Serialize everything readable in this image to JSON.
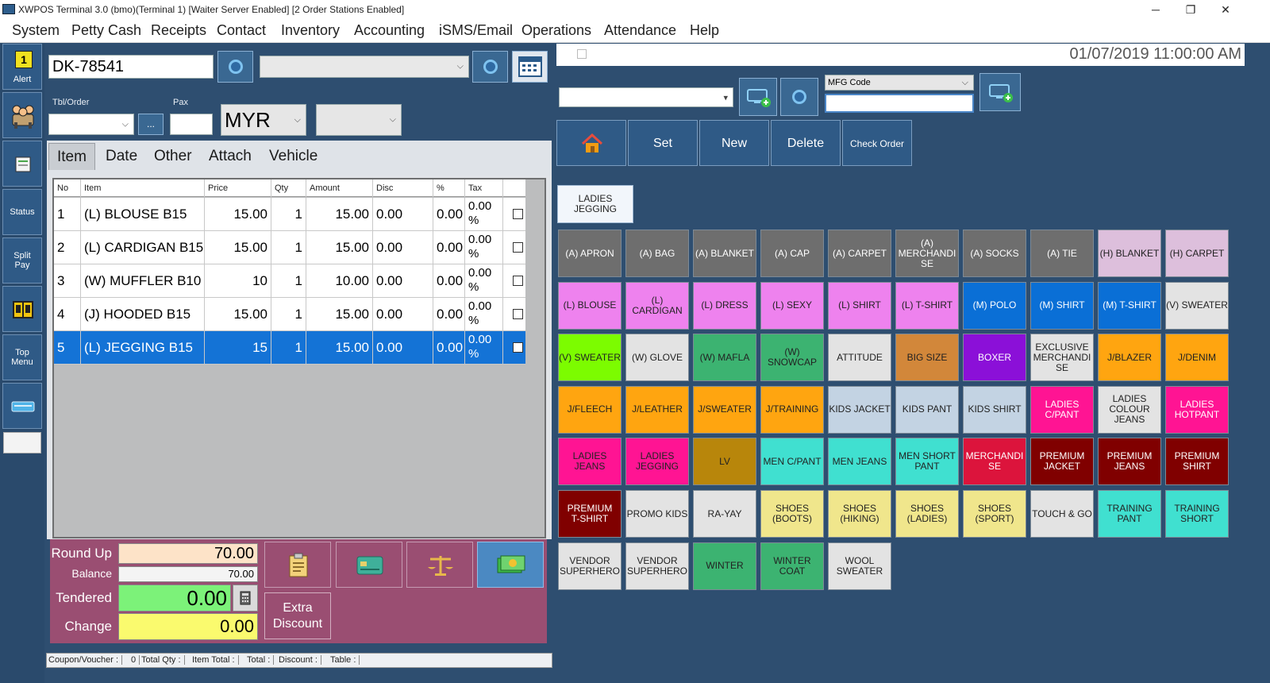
{
  "window": {
    "title": "XWPOS Terminal 3.0 (bmo)(Terminal 1) [Waiter Server Enabled] [2 Order Stations Enabled]",
    "minimize": "─",
    "maximize": "❐",
    "close": "✕"
  },
  "menu": [
    "System",
    "Petty Cash",
    "Receipts",
    "Contact",
    "Inventory",
    "Accounting",
    "iSMS/Email",
    "Operations",
    "Attendance",
    "Help"
  ],
  "rail": {
    "alert_count": "1",
    "alert": "Alert",
    "status": "Status",
    "split_pay": "Split\nPay",
    "top_menu": "Top\nMenu"
  },
  "order": {
    "doc_no": "DK-78541",
    "tbl_label": "Tbl/Order",
    "pax_label": "Pax",
    "currency": "MYR",
    "ellipsis": "..."
  },
  "tabs": [
    "Item",
    "Date",
    "Other",
    "Attach",
    "Vehicle"
  ],
  "grid": {
    "headers": [
      "No",
      "Item",
      "Price",
      "Qty",
      "Amount",
      "Disc",
      "%",
      "Tax"
    ],
    "rows": [
      {
        "no": "1",
        "item": "(L) BLOUSE B15",
        "price": "15.00",
        "qty": "1",
        "amount": "15.00",
        "disc": "0.00",
        "pct": "0.00",
        "tax1": "0.00",
        "tax2": "%",
        "selected": false
      },
      {
        "no": "2",
        "item": "(L) CARDIGAN B15",
        "price": "15.00",
        "qty": "1",
        "amount": "15.00",
        "disc": "0.00",
        "pct": "0.00",
        "tax1": "0.00",
        "tax2": "%",
        "selected": false
      },
      {
        "no": "3",
        "item": "(W) MUFFLER B10",
        "price": "10",
        "qty": "1",
        "amount": "10.00",
        "disc": "0.00",
        "pct": "0.00",
        "tax1": "0.00",
        "tax2": "%",
        "selected": false
      },
      {
        "no": "4",
        "item": "(J) HOODED B15",
        "price": "15.00",
        "qty": "1",
        "amount": "15.00",
        "disc": "0.00",
        "pct": "0.00",
        "tax1": "0.00",
        "tax2": "%",
        "selected": false
      },
      {
        "no": "5",
        "item": "(L) JEGGING B15",
        "price": "15",
        "qty": "1",
        "amount": "15.00",
        "disc": "0.00",
        "pct": "0.00",
        "tax1": "0.00",
        "tax2": "%",
        "selected": true
      }
    ]
  },
  "totals": {
    "round_up_label": "Round Up",
    "round_up": "70.00",
    "balance_label": "Balance",
    "balance": "70.00",
    "tendered_label": "Tendered",
    "tendered": "0.00",
    "change_label": "Change",
    "change": "0.00",
    "extra_discount": "Extra\nDiscount"
  },
  "statusbar": {
    "coupon": "Coupon/Voucher :",
    "coupon_val": "0",
    "total_qty": "Total Qty :",
    "item_total": "Item Total :",
    "total": "Total :",
    "discount": "Discount :",
    "table": "Table :"
  },
  "right": {
    "clock": "01/07/2019 11:00:00 AM",
    "mfg_label": "MFG Code",
    "buttons": [
      "Set",
      "New",
      "Delete",
      "Check Order"
    ],
    "breadcrumb": "LADIES\nJEGGING"
  },
  "categories": [
    {
      "label": "(A) APRON",
      "bg": "#6e6e6e",
      "fg": "#ffffff"
    },
    {
      "label": "(A) BAG",
      "bg": "#6e6e6e",
      "fg": "#ffffff"
    },
    {
      "label": "(A) BLANKET",
      "bg": "#6e6e6e",
      "fg": "#ffffff"
    },
    {
      "label": "(A) CAP",
      "bg": "#6e6e6e",
      "fg": "#ffffff"
    },
    {
      "label": "(A) CARPET",
      "bg": "#6e6e6e",
      "fg": "#ffffff"
    },
    {
      "label": "(A)\nMERCHANDI\nSE",
      "bg": "#6e6e6e",
      "fg": "#ffffff"
    },
    {
      "label": "(A) SOCKS",
      "bg": "#6e6e6e",
      "fg": "#ffffff"
    },
    {
      "label": "(A) TIE",
      "bg": "#6e6e6e",
      "fg": "#ffffff"
    },
    {
      "label": "(H) BLANKET",
      "bg": "#ddbfdc",
      "fg": "#222222"
    },
    {
      "label": "(H) CARPET",
      "bg": "#ddbfdc",
      "fg": "#222222"
    },
    {
      "label": "(L) BLOUSE",
      "bg": "#ee82ee",
      "fg": "#222222"
    },
    {
      "label": "(L)\nCARDIGAN",
      "bg": "#ee82ee",
      "fg": "#222222"
    },
    {
      "label": "(L) DRESS",
      "bg": "#ee82ee",
      "fg": "#222222"
    },
    {
      "label": "(L) SEXY",
      "bg": "#ee82ee",
      "fg": "#222222"
    },
    {
      "label": "(L) SHIRT",
      "bg": "#ee82ee",
      "fg": "#222222"
    },
    {
      "label": "(L) T-SHIRT",
      "bg": "#ee82ee",
      "fg": "#222222"
    },
    {
      "label": "(M) POLO",
      "bg": "#0a6fd6",
      "fg": "#ffffff"
    },
    {
      "label": "(M) SHIRT",
      "bg": "#0a6fd6",
      "fg": "#ffffff"
    },
    {
      "label": "(M) T-SHIRT",
      "bg": "#0a6fd6",
      "fg": "#ffffff"
    },
    {
      "label": "(V) SWEATER",
      "bg": "#e3e3e3",
      "fg": "#222222"
    },
    {
      "label": "(V) SWEATER",
      "bg": "#7cfc00",
      "fg": "#222222"
    },
    {
      "label": "(W) GLOVE",
      "bg": "#e3e3e3",
      "fg": "#222222"
    },
    {
      "label": "(W) MAFLA",
      "bg": "#3cb371",
      "fg": "#222222"
    },
    {
      "label": "(W)\nSNOWCAP",
      "bg": "#3cb371",
      "fg": "#222222"
    },
    {
      "label": "ATTITUDE",
      "bg": "#e3e3e3",
      "fg": "#222222"
    },
    {
      "label": "BIG SIZE",
      "bg": "#d2873a",
      "fg": "#222222"
    },
    {
      "label": "BOXER",
      "bg": "#8b10d8",
      "fg": "#ffffff"
    },
    {
      "label": "EXCLUSIVE\nMERCHANDI\nSE",
      "bg": "#e3e3e3",
      "fg": "#222222"
    },
    {
      "label": "J/BLAZER",
      "bg": "#ffa510",
      "fg": "#222222"
    },
    {
      "label": "J/DENIM",
      "bg": "#ffa510",
      "fg": "#222222"
    },
    {
      "label": "J/FLEECH",
      "bg": "#ffa510",
      "fg": "#222222"
    },
    {
      "label": "J/LEATHER",
      "bg": "#ffa510",
      "fg": "#222222"
    },
    {
      "label": "J/SWEATER",
      "bg": "#ffa510",
      "fg": "#222222"
    },
    {
      "label": "J/TRAINING",
      "bg": "#ffa510",
      "fg": "#222222"
    },
    {
      "label": "KIDS JACKET",
      "bg": "#c3d3e3",
      "fg": "#222222"
    },
    {
      "label": "KIDS PANT",
      "bg": "#c3d3e3",
      "fg": "#222222"
    },
    {
      "label": "KIDS SHIRT",
      "bg": "#c3d3e3",
      "fg": "#222222"
    },
    {
      "label": "LADIES\nC/PANT",
      "bg": "#ff1493",
      "fg": "#ffffff"
    },
    {
      "label": "LADIES\nCOLOUR\nJEANS",
      "bg": "#e3e3e3",
      "fg": "#222222"
    },
    {
      "label": "LADIES\nHOTPANT",
      "bg": "#ff1493",
      "fg": "#ffffff"
    },
    {
      "label": "LADIES\nJEANS",
      "bg": "#ff1493",
      "fg": "#222222"
    },
    {
      "label": "LADIES\nJEGGING",
      "bg": "#ff1493",
      "fg": "#222222"
    },
    {
      "label": "LV",
      "bg": "#b8860b",
      "fg": "#222222"
    },
    {
      "label": "MEN C/PANT",
      "bg": "#40e0d0",
      "fg": "#222222"
    },
    {
      "label": "MEN JEANS",
      "bg": "#40e0d0",
      "fg": "#222222"
    },
    {
      "label": "MEN SHORT\nPANT",
      "bg": "#40e0d0",
      "fg": "#222222"
    },
    {
      "label": "MERCHANDI\nSE",
      "bg": "#dc143c",
      "fg": "#ffffff"
    },
    {
      "label": "PREMIUM\nJACKET",
      "bg": "#800000",
      "fg": "#ffffff"
    },
    {
      "label": "PREMIUM\nJEANS",
      "bg": "#800000",
      "fg": "#ffffff"
    },
    {
      "label": "PREMIUM\nSHIRT",
      "bg": "#800000",
      "fg": "#ffffff"
    },
    {
      "label": "PREMIUM\nT-SHIRT",
      "bg": "#800000",
      "fg": "#ffffff"
    },
    {
      "label": "PROMO KIDS",
      "bg": "#e3e3e3",
      "fg": "#222222"
    },
    {
      "label": "RA-YAY",
      "bg": "#e3e3e3",
      "fg": "#222222"
    },
    {
      "label": "SHOES\n(BOOTS)",
      "bg": "#f0e68c",
      "fg": "#222222"
    },
    {
      "label": "SHOES\n(HIKING)",
      "bg": "#f0e68c",
      "fg": "#222222"
    },
    {
      "label": "SHOES\n(LADIES)",
      "bg": "#f0e68c",
      "fg": "#222222"
    },
    {
      "label": "SHOES\n(SPORT)",
      "bg": "#f0e68c",
      "fg": "#222222"
    },
    {
      "label": "TOUCH & GO",
      "bg": "#e3e3e3",
      "fg": "#222222"
    },
    {
      "label": "TRAINING\nPANT",
      "bg": "#40e0d0",
      "fg": "#222222"
    },
    {
      "label": "TRAINING\nSHORT",
      "bg": "#40e0d0",
      "fg": "#222222"
    },
    {
      "label": "VENDOR\nSUPERHERO",
      "bg": "#e3e3e3",
      "fg": "#222222"
    },
    {
      "label": "VENDOR\nSUPERHERO",
      "bg": "#e3e3e3",
      "fg": "#222222"
    },
    {
      "label": "WINTER",
      "bg": "#3cb371",
      "fg": "#222222"
    },
    {
      "label": "WINTER\nCOAT",
      "bg": "#3cb371",
      "fg": "#222222"
    },
    {
      "label": "WOOL\nSWEATER",
      "bg": "#e3e3e3",
      "fg": "#222222"
    }
  ]
}
